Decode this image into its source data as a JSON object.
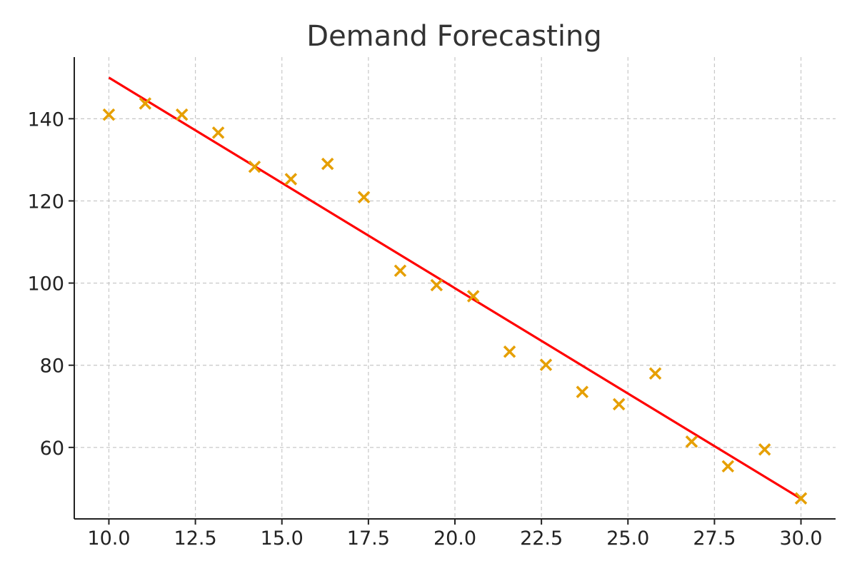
{
  "chart_data": {
    "type": "scatter",
    "title": "Demand Forecasting",
    "xlabel": "",
    "ylabel": "",
    "xlim": [
      9.0,
      31.0
    ],
    "ylim": [
      42.6,
      155.0
    ],
    "xticks": [
      10.0,
      12.5,
      15.0,
      17.5,
      20.0,
      22.5,
      25.0,
      27.5,
      30.0
    ],
    "xtick_labels": [
      "10.0",
      "12.5",
      "15.0",
      "17.5",
      "20.0",
      "22.5",
      "25.0",
      "27.5",
      "30.0"
    ],
    "yticks": [
      60,
      80,
      100,
      120,
      140
    ],
    "ytick_labels": [
      "60",
      "80",
      "100",
      "120",
      "140"
    ],
    "grid": true,
    "series": [
      {
        "type": "scatter",
        "marker": "x",
        "color": "#E69F00",
        "x": [
          10.0,
          11.05,
          12.11,
          13.16,
          14.21,
          15.26,
          16.32,
          17.37,
          18.42,
          19.47,
          20.53,
          21.58,
          22.63,
          23.68,
          24.74,
          25.79,
          26.84,
          27.89,
          28.95,
          30.0
        ],
        "y": [
          141.0,
          143.7,
          141.0,
          136.6,
          128.3,
          125.3,
          129.0,
          120.9,
          103.0,
          99.5,
          96.8,
          83.3,
          80.1,
          73.5,
          70.5,
          78.0,
          61.4,
          55.4,
          59.5,
          47.6
        ]
      },
      {
        "type": "line",
        "color": "#FF0000",
        "x": [
          10.0,
          30.0
        ],
        "y": [
          150.0,
          47.5
        ]
      }
    ]
  }
}
